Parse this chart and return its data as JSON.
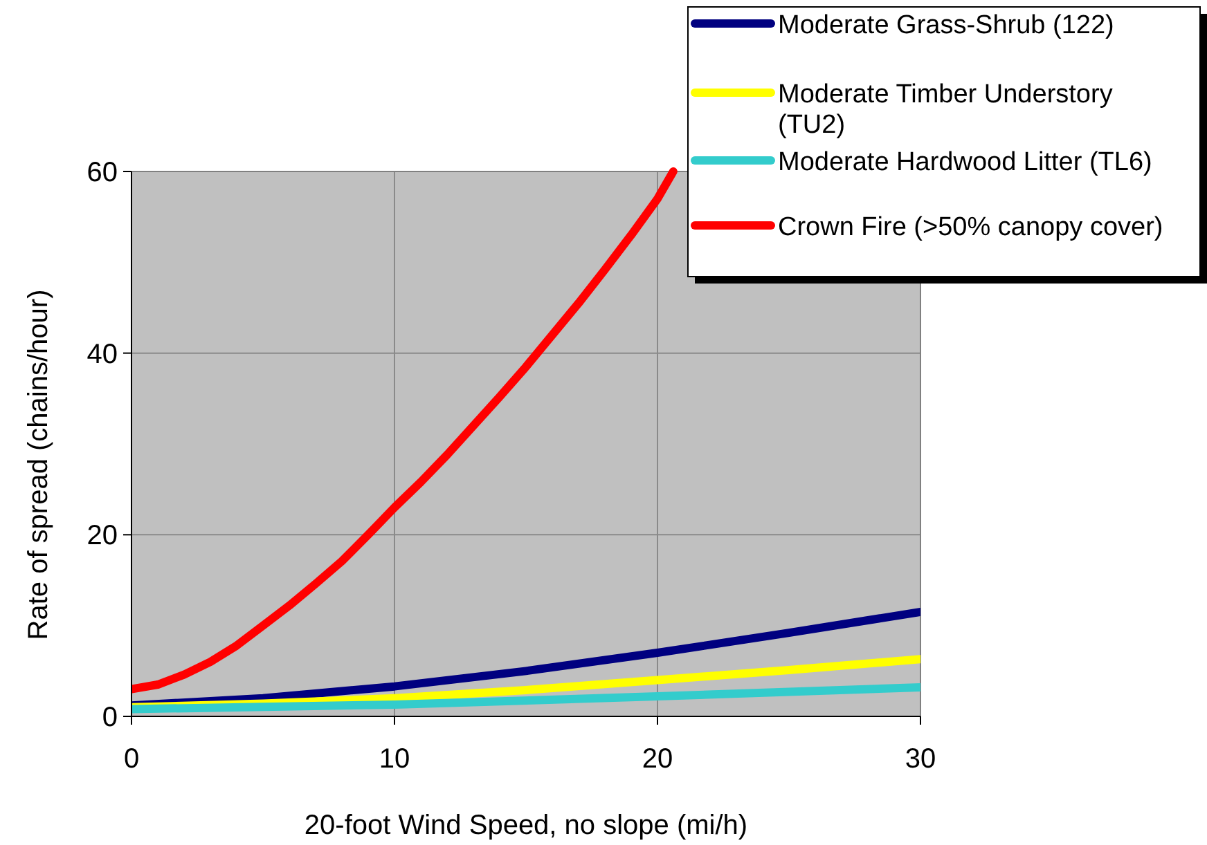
{
  "chart_data": {
    "type": "line",
    "xlabel": "20-foot Wind Speed, no slope (mi/h)",
    "ylabel": "Rate of spread (chains/hour)",
    "xlim": [
      0,
      30
    ],
    "ylim": [
      0,
      60
    ],
    "xticks": [
      0,
      10,
      20,
      30
    ],
    "yticks": [
      0,
      20,
      40,
      60
    ],
    "grid": true,
    "legend": "top right",
    "series": [
      {
        "name": "Moderate Grass-Shrub (122)",
        "color": "#000080",
        "x": [
          0,
          5,
          10,
          15,
          20,
          25,
          30
        ],
        "values": [
          1.2,
          2,
          3.3,
          5,
          7,
          9.2,
          11.5
        ]
      },
      {
        "name": "Moderate Timber Understory (TU2)",
        "color": "#ffff00",
        "x": [
          0,
          5,
          10,
          15,
          20,
          25,
          30
        ],
        "values": [
          1,
          1.4,
          2,
          2.9,
          4,
          5.1,
          6.3
        ]
      },
      {
        "name": "Moderate Hardwood Litter (TL6)",
        "color": "#33cccc",
        "x": [
          0,
          10,
          20,
          30
        ],
        "values": [
          0.8,
          1.3,
          2.2,
          3.2
        ]
      },
      {
        "name": "Crown Fire (>50% canopy cover)",
        "color": "#ff0000",
        "x": [
          0,
          1,
          2,
          3,
          4,
          5,
          6,
          7,
          8,
          9,
          10,
          11,
          12,
          13,
          14,
          15,
          16,
          17,
          18,
          19,
          20,
          20.6
        ],
        "values": [
          3,
          3.5,
          4.6,
          6,
          7.8,
          10,
          12.2,
          14.6,
          17.1,
          20,
          23,
          25.8,
          28.8,
          32,
          35.2,
          38.5,
          42,
          45.5,
          49.2,
          53,
          57,
          60
        ]
      }
    ]
  }
}
